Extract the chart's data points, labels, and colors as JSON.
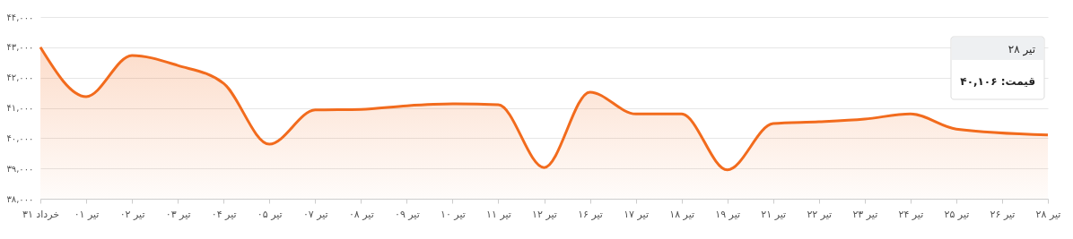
{
  "chart_data": {
    "type": "area",
    "categories": [
      "خرداد ۳۱",
      "تیر ۰۱",
      "تیر ۰۲",
      "تیر ۰۳",
      "تیر ۰۴",
      "تیر ۰۵",
      "تیر ۰۷",
      "تیر ۰۸",
      "تیر ۰۹",
      "تیر ۱۰",
      "تیر ۱۱",
      "تیر ۱۲",
      "تیر ۱۶",
      "تیر ۱۷",
      "تیر ۱۸",
      "تیر ۱۹",
      "تیر ۲۱",
      "تیر ۲۲",
      "تیر ۲۳",
      "تیر ۲۴",
      "تیر ۲۵",
      "تیر ۲۶",
      "تیر ۲۸"
    ],
    "series": [
      {
        "color": "#f26b1d",
        "values": [
          43000,
          41370,
          42730,
          42400,
          41810,
          39800,
          40930,
          40950,
          41070,
          41130,
          41100,
          39030,
          41520,
          40800,
          40800,
          38950,
          40480,
          40540,
          40630,
          40800,
          40300,
          null,
          40106
        ]
      }
    ],
    "ylim": [
      38000,
      44000
    ],
    "yticks": [
      {
        "value": 38000,
        "label": "۳۸,۰۰۰"
      },
      {
        "value": 39000,
        "label": "۳۹,۰۰۰"
      },
      {
        "value": 40000,
        "label": "۴۰,۰۰۰"
      },
      {
        "value": 41000,
        "label": "۴۱,۰۰۰"
      },
      {
        "value": 42000,
        "label": "۴۲,۰۰۰"
      },
      {
        "value": 43000,
        "label": "۴۳,۰۰۰"
      },
      {
        "value": 44000,
        "label": "۴۴,۰۰۰"
      }
    ],
    "grid": "y",
    "marker": "none",
    "line_style": "solid",
    "annotations": [
      "تیر ۲۸",
      "قیمت: ۴۰,۱۰۶"
    ]
  }
}
